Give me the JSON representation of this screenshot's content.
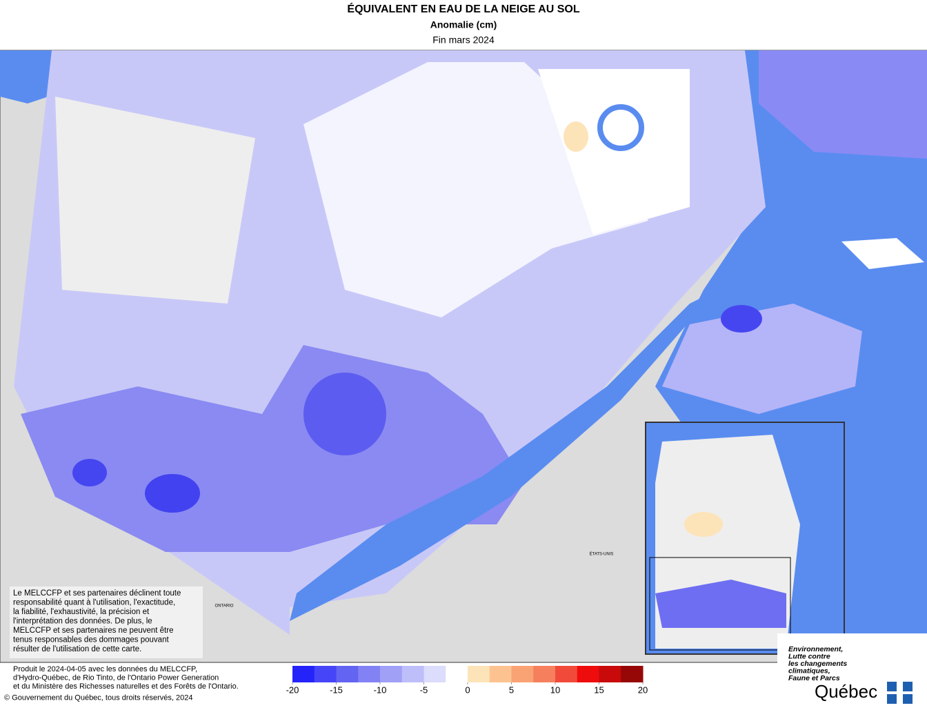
{
  "header": {
    "title": "ÉQUIVALENT EN EAU DE LA NEIGE AU SOL",
    "subtitle": "Anomalie (cm)",
    "period": "Fin mars 2024"
  },
  "map": {
    "labels": [
      "ONTARIO",
      "ÉTATS-UNIS"
    ]
  },
  "disclaimer": [
    "Le MELCCFP et ses partenaires déclinent toute",
    "responsabilité quant à l'utilisation, l'exactitude,",
    "la fiabilité, l'exhaustivité, la précision et",
    "l'interprétation des données. De plus, le",
    "MELCCFP et ses partenaires ne peuvent être",
    "tenus responsables des dommages pouvant",
    "résulter de l'utilisation de cette carte."
  ],
  "credits": [
    "Produit le 2024-04-05 avec les données du MELCCFP,",
    "d'Hydro-Québec, de Rio Tinto, de l'Ontario Power Generation",
    "et du Ministère des Richesses naturelles et des Forêts de l'Ontario.",
    "© Gouvernement du Québec, tous droits réservés, 2024"
  ],
  "legend": {
    "range": [
      -20,
      20
    ],
    "ticks": [
      -20,
      -15,
      -10,
      -5,
      0,
      5,
      10,
      15,
      20
    ],
    "colors": [
      "#2323fa",
      "#4646f8",
      "#6464f2",
      "#8282f4",
      "#a0a0f6",
      "#bebefa",
      "#dcdcfc",
      "#ffffff",
      "#fde3b8",
      "#fcc391",
      "#f9a375",
      "#f67f5e",
      "#f24a3a",
      "#ef0c0c",
      "#c80a0a",
      "#960808"
    ]
  },
  "logo": {
    "lines": [
      "Environnement,",
      "Lutte contre",
      "les changements",
      "climatiques,",
      "Faune et Parcs"
    ],
    "name": "Québec"
  }
}
